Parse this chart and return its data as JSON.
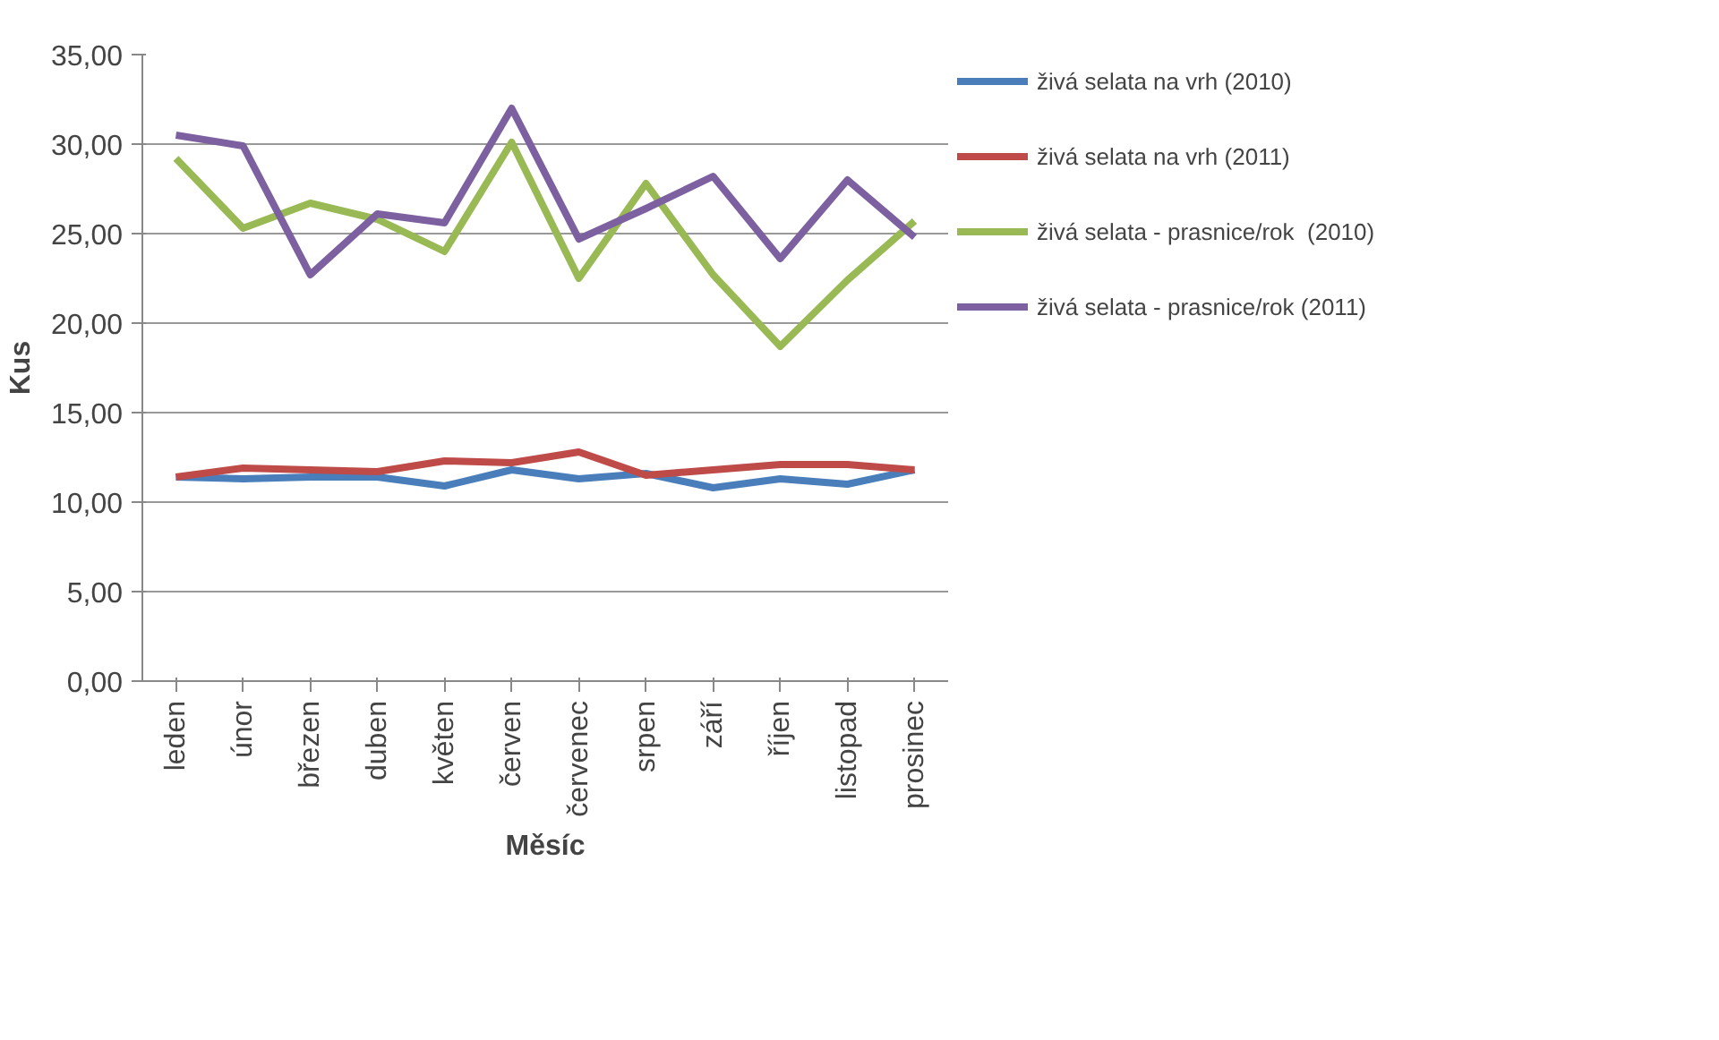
{
  "chart_data": {
    "type": "line",
    "xlabel": "Měsíc",
    "ylabel": "Kus",
    "categories": [
      "leden",
      "únor",
      "březen",
      "duben",
      "květen",
      "červen",
      "červenec",
      "srpen",
      "září",
      "říjen",
      "listopad",
      "prosinec"
    ],
    "series": [
      {
        "name": "živá selata na vrh (2010)",
        "color": "#4a7ebb",
        "values": [
          11.4,
          11.3,
          11.4,
          11.4,
          10.9,
          11.8,
          11.3,
          11.6,
          10.8,
          11.3,
          11.0,
          11.8
        ]
      },
      {
        "name": "živá selata na vrh (2011)",
        "color": "#be4b48",
        "values": [
          11.4,
          11.9,
          11.8,
          11.7,
          12.3,
          12.2,
          12.8,
          11.5,
          11.8,
          12.1,
          12.1,
          11.8
        ]
      },
      {
        "name": "živá selata - prasnice/rok  (2010)",
        "color": "#98b954",
        "values": [
          29.2,
          25.3,
          26.7,
          25.8,
          24.0,
          30.1,
          22.5,
          27.8,
          22.7,
          18.7,
          22.4,
          25.7
        ]
      },
      {
        "name": "živá selata - prasnice/rok (2011)",
        "color": "#7d60a0",
        "values": [
          30.5,
          29.9,
          22.7,
          26.1,
          25.6,
          32.0,
          24.7,
          26.4,
          28.2,
          23.6,
          28.0,
          24.8
        ]
      }
    ],
    "ylim": [
      0,
      35
    ],
    "yticks": [
      {
        "value": 0,
        "label": "0,00"
      },
      {
        "value": 5,
        "label": "5,00"
      },
      {
        "value": 10,
        "label": "10,00"
      },
      {
        "value": 15,
        "label": "15,00"
      },
      {
        "value": 20,
        "label": "20,00"
      },
      {
        "value": 25,
        "label": "25,00"
      },
      {
        "value": 30,
        "label": "30,00"
      },
      {
        "value": 35,
        "label": "35,00"
      }
    ],
    "grid": "y",
    "legend": "right",
    "marker": "none",
    "line_style": "solid"
  }
}
